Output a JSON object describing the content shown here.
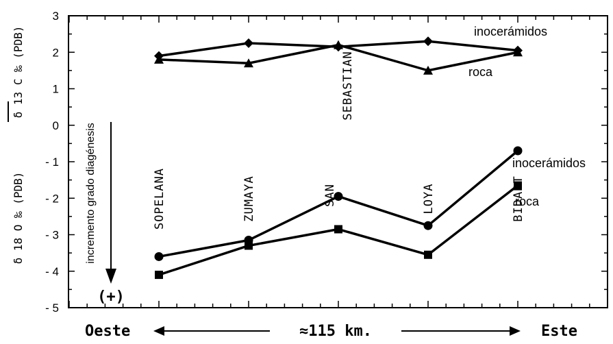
{
  "chart_data": {
    "type": "line",
    "x": [
      1,
      2,
      3,
      4,
      5
    ],
    "categories": [
      "SOPELANA",
      "ZUMAYA",
      "SAN SEBASTIAN",
      "LOYA",
      "BIDART"
    ],
    "site_label_lines": [
      [
        "SOPELANA"
      ],
      [
        "ZUMAYA"
      ],
      [
        "SAN",
        "SEBASTIAN"
      ],
      [
        "LOYA"
      ],
      [
        "BIDART"
      ]
    ],
    "ylim": [
      -5,
      3
    ],
    "yticks": [
      "3",
      "2",
      "1",
      "0",
      "- 1",
      "- 2",
      "- 3",
      "- 4",
      "- 5"
    ],
    "ytick_values": [
      3,
      2,
      1,
      0,
      -1,
      -2,
      -3,
      -4,
      -5
    ],
    "ylabel_top": "δ 13 C ‰ (PDB)",
    "ylabel_bottom": "δ 18 O ‰ (PDB)",
    "series": [
      {
        "name": "inocerámidos",
        "group": "carbon",
        "marker": "diamond",
        "values": [
          1.9,
          2.25,
          2.15,
          2.3,
          2.05
        ]
      },
      {
        "name": "roca",
        "group": "carbon",
        "marker": "triangle",
        "values": [
          1.8,
          1.7,
          2.2,
          1.5,
          2.0
        ]
      },
      {
        "name": "inocerámidos",
        "group": "oxygen",
        "marker": "circle",
        "values": [
          -3.6,
          -3.15,
          -1.95,
          -2.75,
          -0.7
        ]
      },
      {
        "name": "roca",
        "group": "oxygen",
        "marker": "square",
        "values": [
          -4.1,
          -3.3,
          -2.85,
          -3.55,
          -1.65
        ]
      }
    ],
    "annotation_arrow": "incremento grado diagénesis",
    "annotation_sign": "(+)",
    "x_left_label": "Oeste",
    "x_right_label": "Este",
    "x_distance_label": "≈115 km."
  }
}
